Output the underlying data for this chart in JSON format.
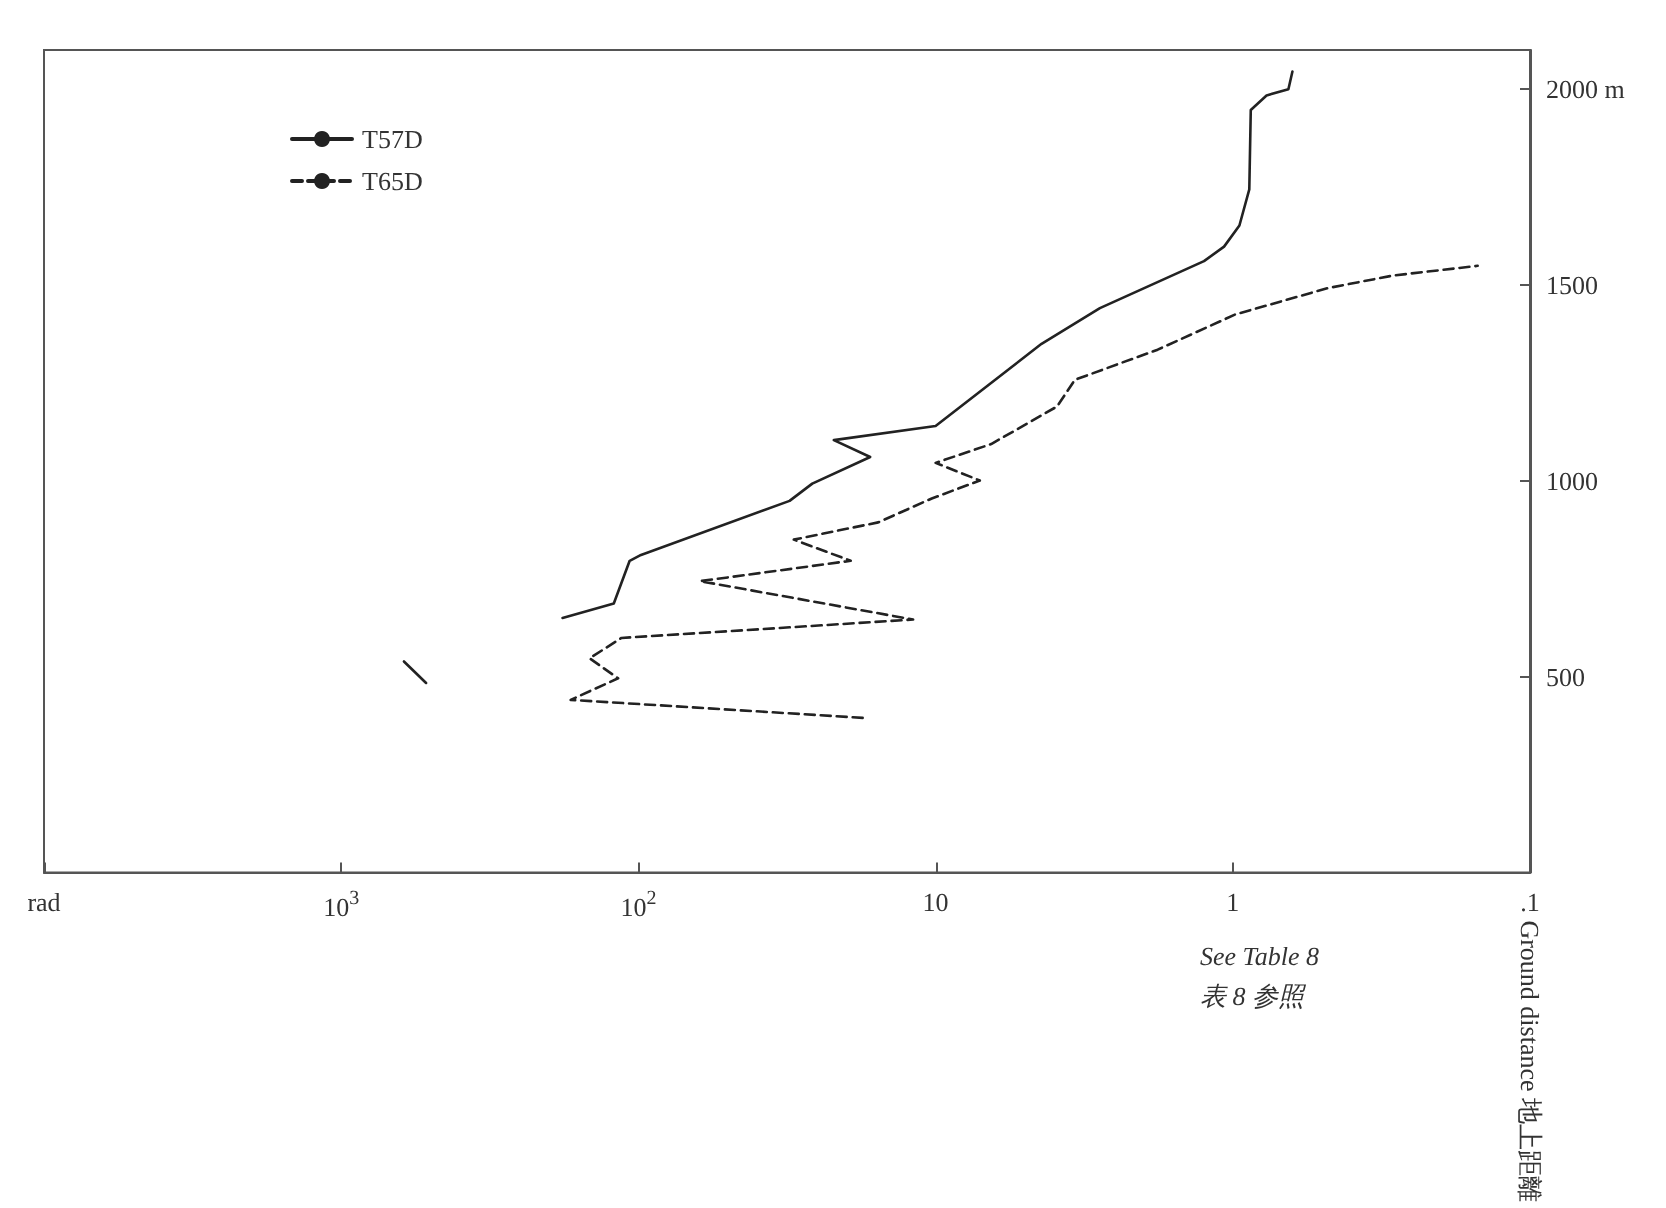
{
  "chart_data": {
    "type": "line",
    "ylabel": "Ground distance 地上距離",
    "ylim": [
      0,
      2100
    ],
    "yticks": [
      500,
      1000,
      1500,
      {
        "value": 2000,
        "label": "2000 m"
      }
    ],
    "xlim": [
      10000,
      0.1
    ],
    "xticks": [
      {
        "value": 10000,
        "label": "rad"
      },
      {
        "value": 1000,
        "label": "10$^{3}$"
      },
      {
        "value": 100,
        "label": "10$^{2}$"
      },
      10,
      1,
      {
        "value": 0.1,
        "label": ".1"
      }
    ],
    "log": "x",
    "grid": false,
    "legend": "top left",
    "marker": "none",
    "annotations": [
      "See Table 8",
      "表 8 参照"
    ],
    "series": [
      {
        "name": "T57D",
        "color": "#222222",
        "line_style": "solid",
        "values": [
          650,
          687,
          796,
          811,
          949,
          993,
          1061,
          1104,
          1140,
          1350,
          1441,
          1561,
          1598,
          1652,
          1744,
          1947,
          1984,
          2000,
          2045
        ],
        "x": [
          180,
          121,
          107,
          98,
          31,
          26,
          16.6,
          22,
          10,
          4.4,
          2.8,
          1.25,
          1.07,
          0.95,
          0.88,
          0.87,
          0.77,
          0.65,
          0.63
        ]
      },
      {
        "name": "T65D",
        "color": "#222222",
        "line_style": "dashed",
        "values": [
          395,
          441,
          496,
          547,
          599,
          646,
          744,
          796,
          850,
          894,
          955,
          1001,
          1046,
          1094,
          1190,
          1258,
          1335,
          1425,
          1492,
          1524,
          1549
        ],
        "x": [
          17.6,
          169,
          117,
          146,
          114,
          11.9,
          62,
          19.3,
          30,
          15.6,
          10.3,
          7.1,
          10,
          6.5,
          3.9,
          3.4,
          1.79,
          0.98,
          0.48,
          0.29,
          0.15
        ]
      },
      {
        "color": "#222222",
        "line_style": "solid",
        "values": [
          484,
          539
        ],
        "x": [
          518,
          615
        ]
      }
    ]
  }
}
